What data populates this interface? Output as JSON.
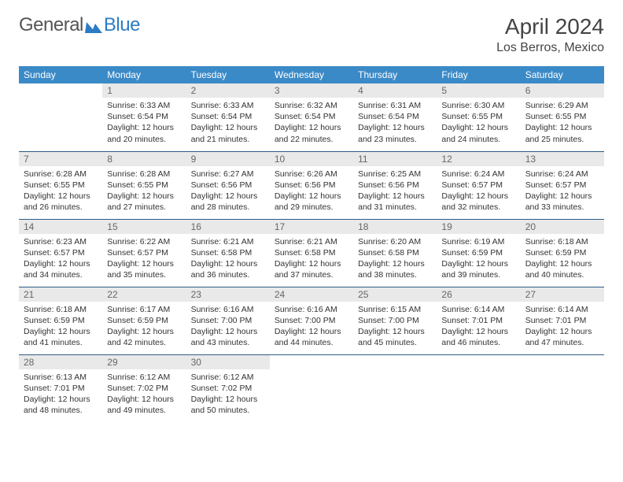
{
  "logo": {
    "part1": "General",
    "part2": "Blue"
  },
  "title": "April 2024",
  "location": "Los Berros, Mexico",
  "colors": {
    "header_bg": "#3b8ac8",
    "header_text": "#ffffff",
    "daynum_bg": "#e9e9e9",
    "daynum_text": "#666666",
    "body_text": "#333333",
    "rule": "#2e5c88",
    "logo_gray": "#555555",
    "logo_blue": "#2b7cc4"
  },
  "weekdays": [
    "Sunday",
    "Monday",
    "Tuesday",
    "Wednesday",
    "Thursday",
    "Friday",
    "Saturday"
  ],
  "layout": {
    "first_day_column": 1,
    "days_in_month": 30
  },
  "days": {
    "1": {
      "sunrise": "6:33 AM",
      "sunset": "6:54 PM",
      "daylight": "12 hours and 20 minutes."
    },
    "2": {
      "sunrise": "6:33 AM",
      "sunset": "6:54 PM",
      "daylight": "12 hours and 21 minutes."
    },
    "3": {
      "sunrise": "6:32 AM",
      "sunset": "6:54 PM",
      "daylight": "12 hours and 22 minutes."
    },
    "4": {
      "sunrise": "6:31 AM",
      "sunset": "6:54 PM",
      "daylight": "12 hours and 23 minutes."
    },
    "5": {
      "sunrise": "6:30 AM",
      "sunset": "6:55 PM",
      "daylight": "12 hours and 24 minutes."
    },
    "6": {
      "sunrise": "6:29 AM",
      "sunset": "6:55 PM",
      "daylight": "12 hours and 25 minutes."
    },
    "7": {
      "sunrise": "6:28 AM",
      "sunset": "6:55 PM",
      "daylight": "12 hours and 26 minutes."
    },
    "8": {
      "sunrise": "6:28 AM",
      "sunset": "6:55 PM",
      "daylight": "12 hours and 27 minutes."
    },
    "9": {
      "sunrise": "6:27 AM",
      "sunset": "6:56 PM",
      "daylight": "12 hours and 28 minutes."
    },
    "10": {
      "sunrise": "6:26 AM",
      "sunset": "6:56 PM",
      "daylight": "12 hours and 29 minutes."
    },
    "11": {
      "sunrise": "6:25 AM",
      "sunset": "6:56 PM",
      "daylight": "12 hours and 31 minutes."
    },
    "12": {
      "sunrise": "6:24 AM",
      "sunset": "6:57 PM",
      "daylight": "12 hours and 32 minutes."
    },
    "13": {
      "sunrise": "6:24 AM",
      "sunset": "6:57 PM",
      "daylight": "12 hours and 33 minutes."
    },
    "14": {
      "sunrise": "6:23 AM",
      "sunset": "6:57 PM",
      "daylight": "12 hours and 34 minutes."
    },
    "15": {
      "sunrise": "6:22 AM",
      "sunset": "6:57 PM",
      "daylight": "12 hours and 35 minutes."
    },
    "16": {
      "sunrise": "6:21 AM",
      "sunset": "6:58 PM",
      "daylight": "12 hours and 36 minutes."
    },
    "17": {
      "sunrise": "6:21 AM",
      "sunset": "6:58 PM",
      "daylight": "12 hours and 37 minutes."
    },
    "18": {
      "sunrise": "6:20 AM",
      "sunset": "6:58 PM",
      "daylight": "12 hours and 38 minutes."
    },
    "19": {
      "sunrise": "6:19 AM",
      "sunset": "6:59 PM",
      "daylight": "12 hours and 39 minutes."
    },
    "20": {
      "sunrise": "6:18 AM",
      "sunset": "6:59 PM",
      "daylight": "12 hours and 40 minutes."
    },
    "21": {
      "sunrise": "6:18 AM",
      "sunset": "6:59 PM",
      "daylight": "12 hours and 41 minutes."
    },
    "22": {
      "sunrise": "6:17 AM",
      "sunset": "6:59 PM",
      "daylight": "12 hours and 42 minutes."
    },
    "23": {
      "sunrise": "6:16 AM",
      "sunset": "7:00 PM",
      "daylight": "12 hours and 43 minutes."
    },
    "24": {
      "sunrise": "6:16 AM",
      "sunset": "7:00 PM",
      "daylight": "12 hours and 44 minutes."
    },
    "25": {
      "sunrise": "6:15 AM",
      "sunset": "7:00 PM",
      "daylight": "12 hours and 45 minutes."
    },
    "26": {
      "sunrise": "6:14 AM",
      "sunset": "7:01 PM",
      "daylight": "12 hours and 46 minutes."
    },
    "27": {
      "sunrise": "6:14 AM",
      "sunset": "7:01 PM",
      "daylight": "12 hours and 47 minutes."
    },
    "28": {
      "sunrise": "6:13 AM",
      "sunset": "7:01 PM",
      "daylight": "12 hours and 48 minutes."
    },
    "29": {
      "sunrise": "6:12 AM",
      "sunset": "7:02 PM",
      "daylight": "12 hours and 49 minutes."
    },
    "30": {
      "sunrise": "6:12 AM",
      "sunset": "7:02 PM",
      "daylight": "12 hours and 50 minutes."
    }
  },
  "labels": {
    "sunrise": "Sunrise: ",
    "sunset": "Sunset: ",
    "daylight": "Daylight: "
  }
}
